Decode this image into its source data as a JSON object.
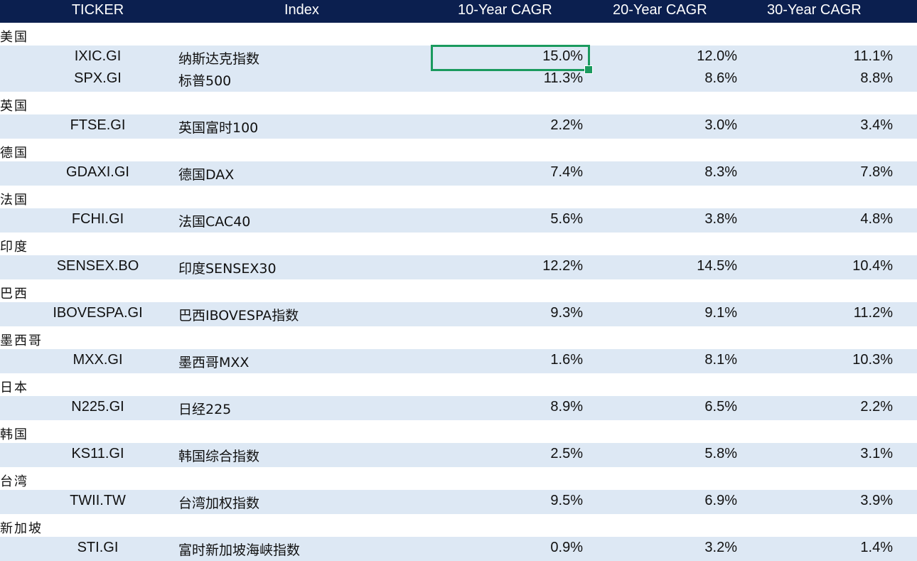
{
  "header": {
    "ticker": "TICKER",
    "index": "Index",
    "y10": "10-Year CAGR",
    "y20": "20-Year CAGR",
    "y30": "30-Year CAGR"
  },
  "groups": [
    {
      "label": "美国",
      "rows": [
        {
          "ticker": "IXIC.GI",
          "index": "纳斯达克指数",
          "y10": "15.0%",
          "y20": "12.0%",
          "y30": "11.1%"
        },
        {
          "ticker": "SPX.GI",
          "index": "标普500",
          "y10": "11.3%",
          "y20": "8.6%",
          "y30": "8.8%"
        }
      ]
    },
    {
      "label": "英国",
      "rows": [
        {
          "ticker": "FTSE.GI",
          "index": "英国富时100",
          "y10": "2.2%",
          "y20": "3.0%",
          "y30": "3.4%"
        }
      ]
    },
    {
      "label": "德国",
      "rows": [
        {
          "ticker": "GDAXI.GI",
          "index": "德国DAX",
          "y10": "7.4%",
          "y20": "8.3%",
          "y30": "7.8%"
        }
      ]
    },
    {
      "label": "法国",
      "rows": [
        {
          "ticker": "FCHI.GI",
          "index": "法国CAC40",
          "y10": "5.6%",
          "y20": "3.8%",
          "y30": "4.8%"
        }
      ]
    },
    {
      "label": "印度",
      "rows": [
        {
          "ticker": "SENSEX.BO",
          "index": "印度SENSEX30",
          "y10": "12.2%",
          "y20": "14.5%",
          "y30": "10.4%"
        }
      ]
    },
    {
      "label": "巴西",
      "rows": [
        {
          "ticker": "IBOVESPA.GI",
          "index": "巴西IBOVESPA指数",
          "y10": "9.3%",
          "y20": "9.1%",
          "y30": "11.2%"
        }
      ]
    },
    {
      "label": "墨西哥",
      "rows": [
        {
          "ticker": "MXX.GI",
          "index": "墨西哥MXX",
          "y10": "1.6%",
          "y20": "8.1%",
          "y30": "10.3%"
        }
      ]
    },
    {
      "label": "日本",
      "rows": [
        {
          "ticker": "N225.GI",
          "index": "日经225",
          "y10": "8.9%",
          "y20": "6.5%",
          "y30": "2.2%"
        }
      ]
    },
    {
      "label": "韩国",
      "rows": [
        {
          "ticker": "KS11.GI",
          "index": "韩国综合指数",
          "y10": "2.5%",
          "y20": "5.8%",
          "y30": "3.1%"
        }
      ]
    },
    {
      "label": "台湾",
      "rows": [
        {
          "ticker": "TWII.TW",
          "index": "台湾加权指数",
          "y10": "9.5%",
          "y20": "6.9%",
          "y30": "3.9%"
        }
      ]
    },
    {
      "label": "新加坡",
      "rows": [
        {
          "ticker": "STI.GI",
          "index": "富时新加坡海峡指数",
          "y10": "0.9%",
          "y20": "3.2%",
          "y30": "1.4%"
        }
      ]
    }
  ],
  "selected_cell": {
    "group": 0,
    "row": 0,
    "column": "y10"
  }
}
